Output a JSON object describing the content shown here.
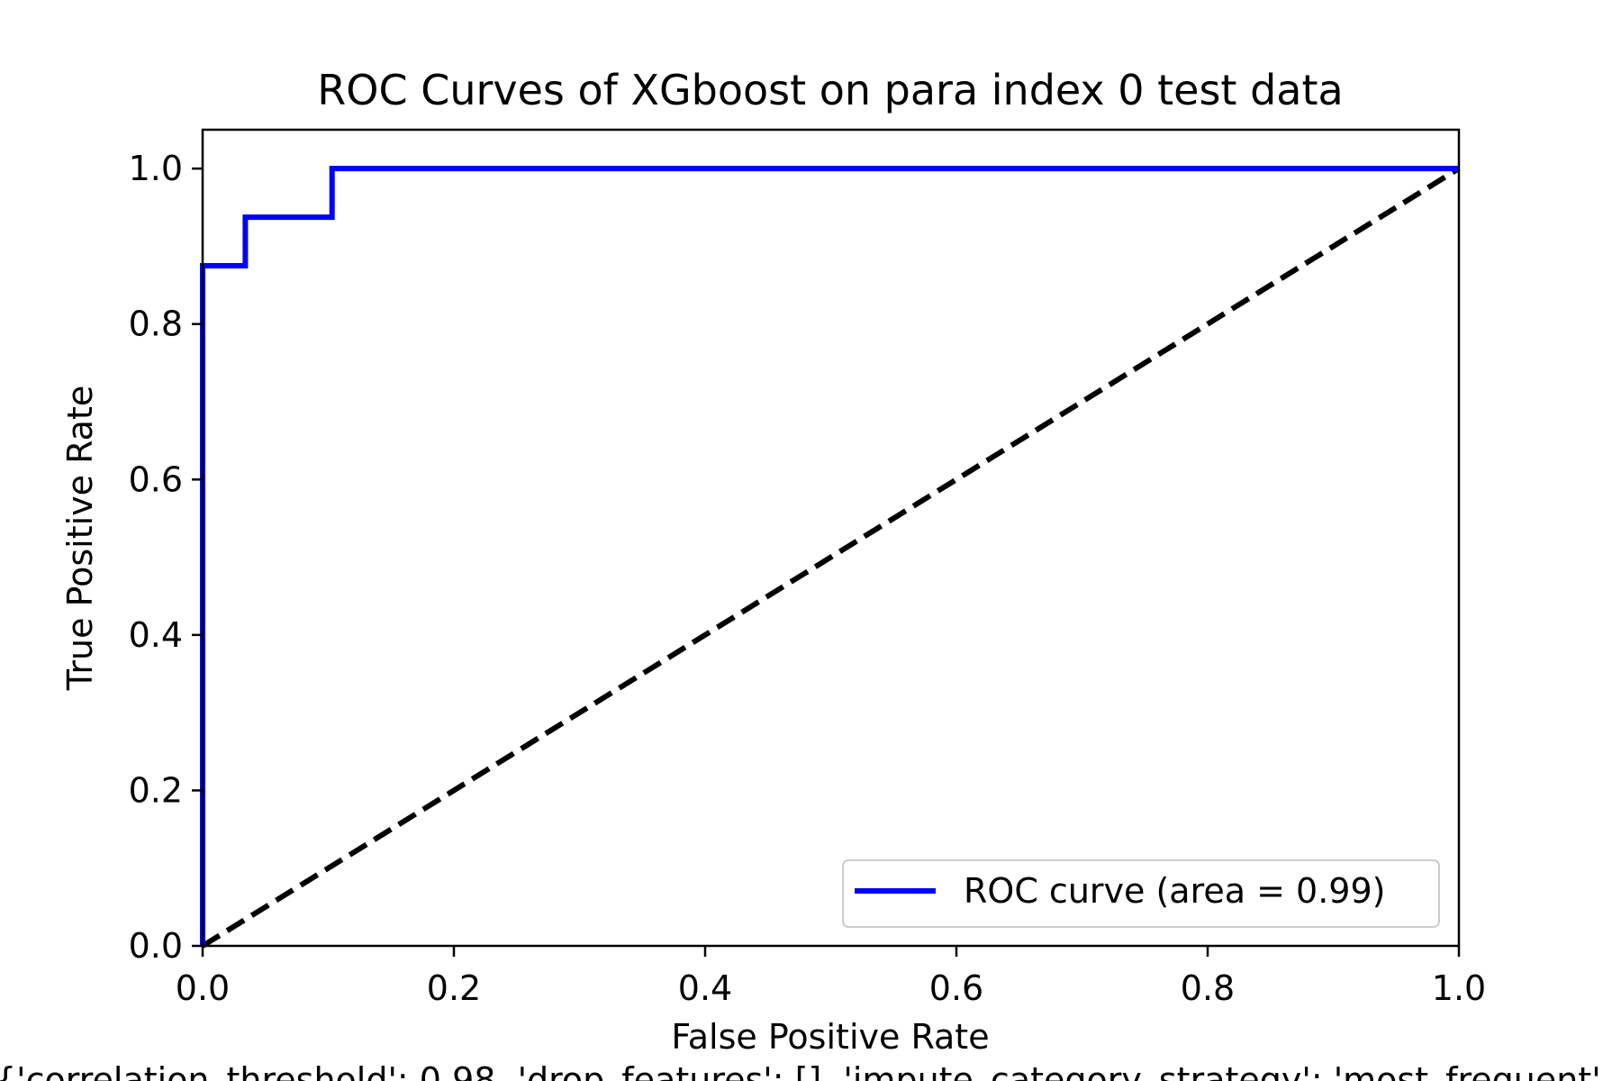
{
  "chart_data": {
    "type": "line",
    "title": "ROC Curves of XGboost on para index 0 test data",
    "xlabel": "False Positive Rate",
    "ylabel": "True Positive Rate",
    "footer": "{'correlation_threshold': 0.98, 'drop_features': [], 'impute_category_strategy': 'most_frequent'",
    "xlim": [
      0.0,
      1.0
    ],
    "ylim": [
      0.0,
      1.05
    ],
    "x_ticks": [
      0.0,
      0.2,
      0.4,
      0.6,
      0.8,
      1.0
    ],
    "y_ticks": [
      0.0,
      0.2,
      0.4,
      0.6,
      0.8,
      1.0
    ],
    "x_tick_labels": [
      "0.0",
      "0.2",
      "0.4",
      "0.6",
      "0.8",
      "1.0"
    ],
    "y_tick_labels": [
      "0.0",
      "0.2",
      "0.4",
      "0.6",
      "0.8",
      "1.0"
    ],
    "grid": false,
    "legend_position": "lower-right",
    "series": [
      {
        "name": "ROC curve (area = 0.99)",
        "color": "#0000ff",
        "style": "solid",
        "x": [
          0.0,
          0.0,
          0.034,
          0.034,
          0.103,
          0.103,
          1.0
        ],
        "y": [
          0.0,
          0.875,
          0.875,
          0.9375,
          0.9375,
          1.0,
          1.0
        ]
      },
      {
        "color": "#000000",
        "style": "dashed",
        "x": [
          0.0,
          1.0
        ],
        "y": [
          0.0,
          1.0
        ]
      }
    ]
  }
}
